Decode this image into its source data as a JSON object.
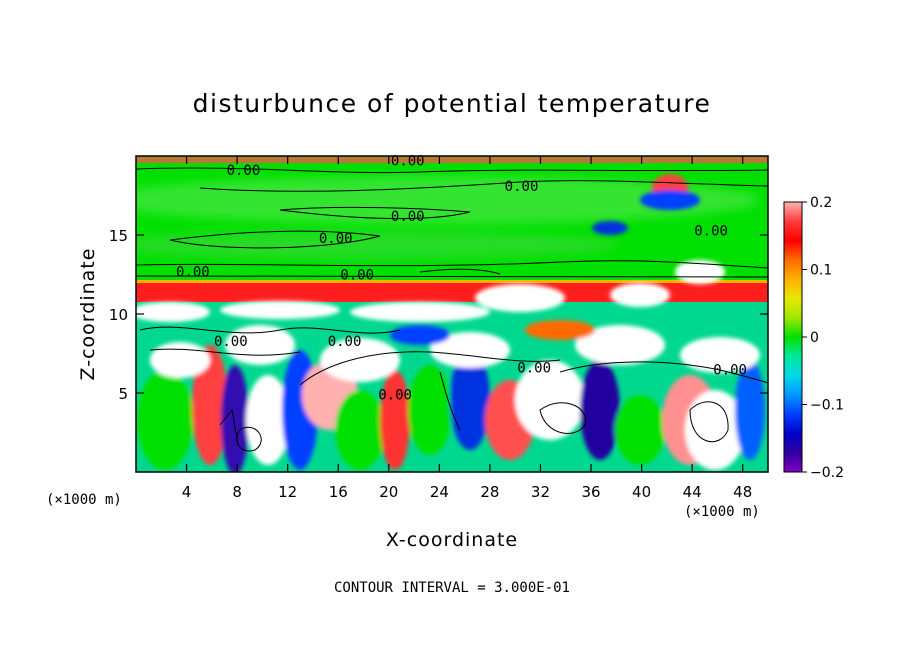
{
  "chart_data": {
    "type": "heatmap",
    "title": "disturbunce of potential temperature",
    "xlabel": "X-coordinate",
    "ylabel": "Z-coordinate",
    "x_unit_left": "(×1000 m)",
    "x_unit_right": "(×1000 m)",
    "x_ticks": [
      4,
      8,
      12,
      16,
      20,
      24,
      28,
      32,
      36,
      40,
      44,
      48
    ],
    "y_ticks": [
      5,
      10,
      15
    ],
    "xlim": [
      0,
      50
    ],
    "ylim": [
      0,
      20
    ],
    "colorbar": {
      "range": [
        -0.2,
        0.2
      ],
      "tick_labels": [
        "0.2",
        "0.1",
        "0",
        "−0.1",
        "−0.2"
      ],
      "tick_values": [
        0.2,
        0.1,
        0,
        -0.1,
        -0.2
      ],
      "colors": [
        "#ffb4b4",
        "#ff3c3c",
        "#ff0000",
        "#ff6a00",
        "#ffb000",
        "#e8e800",
        "#a0e800",
        "#00e000",
        "#00e89a",
        "#00d8e8",
        "#0098ff",
        "#0040ff",
        "#0000c8",
        "#3000a0",
        "#8000c0"
      ]
    },
    "contour_labels": [
      {
        "text": "0.00",
        "x": 8.5,
        "z": 19.1
      },
      {
        "text": "0.00",
        "x": 21.5,
        "z": 19.7
      },
      {
        "text": "0.00",
        "x": 30.5,
        "z": 18.1
      },
      {
        "text": "0.00",
        "x": 21.5,
        "z": 16.2
      },
      {
        "text": "0.00",
        "x": 15.8,
        "z": 14.8
      },
      {
        "text": "0.00",
        "x": 45.5,
        "z": 15.3
      },
      {
        "text": "0.00",
        "x": 4.5,
        "z": 12.7
      },
      {
        "text": "0.00",
        "x": 17.5,
        "z": 12.5
      },
      {
        "text": "0.00",
        "x": 7.5,
        "z": 8.3
      },
      {
        "text": "0.00",
        "x": 16.5,
        "z": 8.3
      },
      {
        "text": "0.00",
        "x": 20.5,
        "z": 4.9
      },
      {
        "text": "0.00",
        "x": 31.5,
        "z": 6.6
      },
      {
        "text": "0.00",
        "x": 47,
        "z": 6.5
      }
    ],
    "note": "CONTOUR INTERVAL = 3.000E-01"
  }
}
